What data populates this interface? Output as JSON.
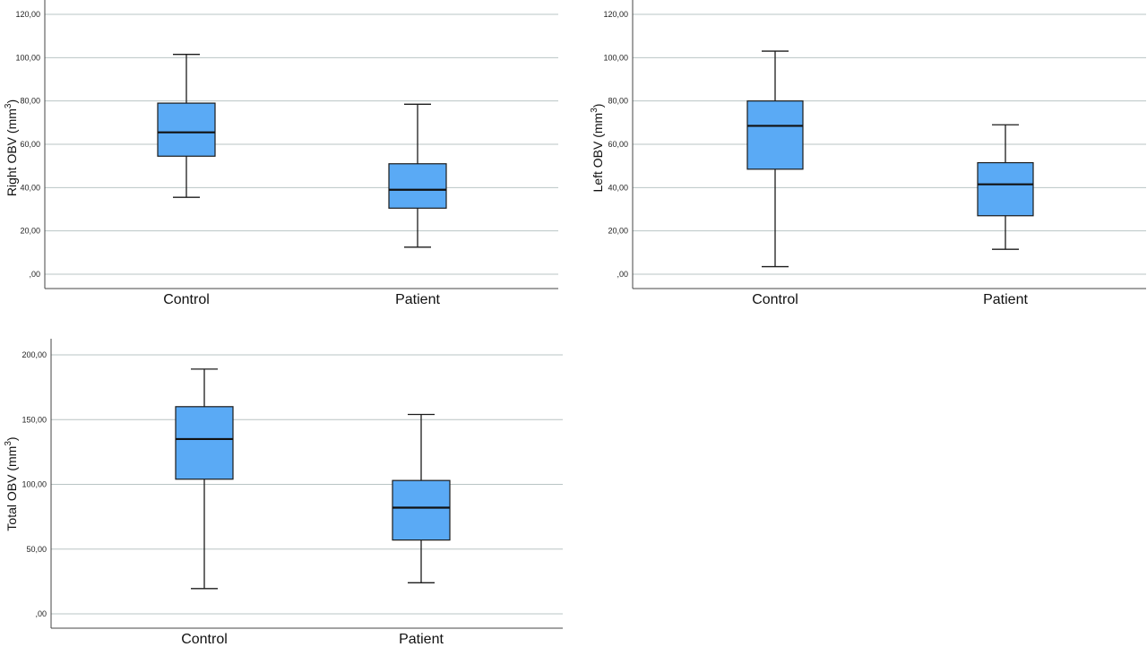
{
  "chart_data": [
    {
      "type": "box",
      "ylabel": "Right OBV (mm",
      "ylabel_sup": "3",
      "ylabel_close": ")",
      "ylim": [
        0,
        120
      ],
      "yticks": [
        0,
        20,
        40,
        60,
        80,
        100,
        120
      ],
      "ytick_labels": [
        ",00",
        "20,00",
        "40,00",
        "60,00",
        "80,00",
        "100,00",
        "120,00"
      ],
      "categories": [
        "Control",
        "Patient"
      ],
      "box_color": "#5aaaf5",
      "boxes": [
        {
          "min": 35.5,
          "q1": 54.5,
          "median": 65.5,
          "q3": 79,
          "max": 101.5
        },
        {
          "min": 12.5,
          "q1": 30.5,
          "median": 39,
          "q3": 51,
          "max": 78.5
        }
      ]
    },
    {
      "type": "box",
      "ylabel": "Left OBV (mm",
      "ylabel_sup": "3",
      "ylabel_close": ")",
      "ylim": [
        0,
        120
      ],
      "yticks": [
        0,
        20,
        40,
        60,
        80,
        100,
        120
      ],
      "ytick_labels": [
        ",00",
        "20,00",
        "40,00",
        "60,00",
        "80,00",
        "100,00",
        "120,00"
      ],
      "categories": [
        "Control",
        "Patient"
      ],
      "box_color": "#5aaaf5",
      "boxes": [
        {
          "min": 3.5,
          "q1": 48.5,
          "median": 68.5,
          "q3": 80,
          "max": 103
        },
        {
          "min": 11.5,
          "q1": 27,
          "median": 41.5,
          "q3": 51.5,
          "max": 69
        }
      ]
    },
    {
      "type": "box",
      "ylabel": "Total OBV (mm",
      "ylabel_sup": "3",
      "ylabel_close": ")",
      "ylim": [
        0,
        200
      ],
      "yticks": [
        0,
        50,
        100,
        150,
        200
      ],
      "ytick_labels": [
        ",00",
        "50,00",
        "100,00",
        "150,00",
        "200,00"
      ],
      "categories": [
        "Control",
        "Patient"
      ],
      "box_color": "#5aaaf5",
      "boxes": [
        {
          "min": 19.5,
          "q1": 104,
          "median": 135,
          "q3": 160,
          "max": 189
        },
        {
          "min": 24,
          "q1": 57,
          "median": 82,
          "q3": 103,
          "max": 154
        }
      ]
    }
  ]
}
